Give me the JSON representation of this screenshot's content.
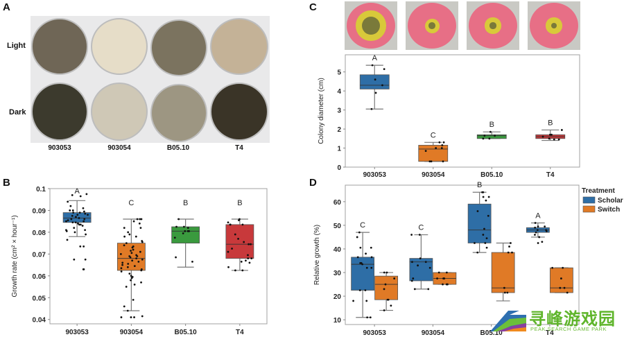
{
  "panels": {
    "A": {
      "letter": "A",
      "row_labels": [
        "Light",
        "Dark"
      ],
      "strains": [
        "903053",
        "903054",
        "B05.10",
        "T4"
      ],
      "plates_light_colors": [
        "#6f6656",
        "#e6ddc8",
        "#7b735f",
        "#c4b297"
      ],
      "plates_dark_colors": [
        "#3c3a2d",
        "#cfc8b6",
        "#9d9682",
        "#3a3427"
      ]
    },
    "B": {
      "letter": "B"
    },
    "C": {
      "letter": "C",
      "plates": [
        {
          "halo": 0.62,
          "core": 0.38
        },
        {
          "halo": 0.3,
          "core": 0.14
        },
        {
          "halo": 0.33,
          "core": 0.13
        },
        {
          "halo": 0.33,
          "core": 0.12
        }
      ]
    },
    "D": {
      "letter": "D"
    }
  },
  "colors": {
    "blue": "#2e6ea6",
    "orange": "#e07a26",
    "green": "#3a9a3e",
    "red": "#c8393b"
  },
  "watermark": {
    "cn": "寻峰游戏园",
    "en": "PEAK SEARCH GAME PARK"
  },
  "chart_data": [
    {
      "id": "B",
      "type": "box",
      "title": "",
      "xlabel": "",
      "ylabel": "Growth rate (cm² × hour⁻¹)",
      "categories": [
        "903053",
        "903054",
        "B05.10",
        "T4"
      ],
      "ylim": [
        0.038,
        0.1
      ],
      "yticks": [
        0.04,
        0.05,
        0.06,
        0.07,
        0.08,
        0.09,
        0.1
      ],
      "ytick_labels": [
        "0.04",
        "0.05",
        "0.06",
        "0.07",
        "0.08",
        "0.09",
        "0.1"
      ],
      "boxes": [
        {
          "q1": 0.0845,
          "median": 0.0865,
          "q3": 0.089,
          "low": 0.078,
          "high": 0.0945,
          "color": "blue",
          "letter": "A",
          "points": [
            0.0965,
            0.0975,
            0.097,
            0.094,
            0.092,
            0.091,
            0.09,
            0.09,
            0.0895,
            0.089,
            0.089,
            0.0885,
            0.088,
            0.088,
            0.0875,
            0.087,
            0.087,
            0.0865,
            0.086,
            0.086,
            0.0855,
            0.085,
            0.085,
            0.0845,
            0.0845,
            0.084,
            0.0835,
            0.0835,
            0.083,
            0.082,
            0.081,
            0.081,
            0.0805,
            0.08,
            0.079,
            0.0765,
            0.0735,
            0.0735,
            0.0675,
            0.0675,
            0.063,
            0.063
          ]
        },
        {
          "q1": 0.0625,
          "median": 0.068,
          "q3": 0.075,
          "low": 0.044,
          "high": 0.086,
          "color": "orange",
          "letter": "C",
          "points": [
            0.086,
            0.086,
            0.086,
            0.085,
            0.084,
            0.082,
            0.082,
            0.08,
            0.079,
            0.078,
            0.078,
            0.076,
            0.0755,
            0.075,
            0.074,
            0.0735,
            0.073,
            0.072,
            0.0715,
            0.071,
            0.0705,
            0.07,
            0.0695,
            0.069,
            0.069,
            0.0685,
            0.068,
            0.0675,
            0.067,
            0.0665,
            0.066,
            0.0655,
            0.065,
            0.0645,
            0.064,
            0.0635,
            0.063,
            0.0625,
            0.062,
            0.061,
            0.06,
            0.0595,
            0.059,
            0.058,
            0.057,
            0.056,
            0.055,
            0.049,
            0.046,
            0.044,
            0.0415,
            0.041,
            0.041,
            0.041
          ]
        },
        {
          "q1": 0.075,
          "median": 0.0805,
          "q3": 0.0825,
          "low": 0.064,
          "high": 0.086,
          "color": "green",
          "letter": "B",
          "points": [
            0.086,
            0.082,
            0.0825,
            0.0825,
            0.0805,
            0.0805,
            0.0805,
            0.0795,
            0.0775,
            0.0685,
            0.0665
          ]
        },
        {
          "q1": 0.068,
          "median": 0.0745,
          "q3": 0.0835,
          "low": 0.0625,
          "high": 0.086,
          "color": "red",
          "letter": "B",
          "points": [
            0.086,
            0.0855,
            0.0845,
            0.0835,
            0.0835,
            0.0835,
            0.079,
            0.077,
            0.0755,
            0.0745,
            0.0745,
            0.0725,
            0.071,
            0.0695,
            0.068,
            0.068,
            0.067,
            0.0665,
            0.066,
            0.064,
            0.0625,
            0.0625
          ]
        }
      ]
    },
    {
      "id": "C",
      "type": "box",
      "title": "",
      "xlabel": "",
      "ylabel": "Colony diameter (cm)",
      "categories": [
        "903053",
        "903054",
        "B05.10",
        "T4"
      ],
      "ylim": [
        0,
        5.9
      ],
      "yticks": [
        0,
        1,
        2,
        3,
        4,
        5
      ],
      "ytick_labels": [
        "0",
        "1",
        "2",
        "3",
        "4",
        "5"
      ],
      "boxes": [
        {
          "q1": 4.1,
          "median": 4.3,
          "q3": 4.85,
          "low": 3.05,
          "high": 5.35,
          "color": "blue",
          "letter": "A",
          "points": [
            5.35,
            5.15,
            4.6,
            4.3,
            3.9,
            3.05
          ]
        },
        {
          "q1": 0.3,
          "median": 0.95,
          "q3": 1.15,
          "low": 0.3,
          "high": 1.3,
          "color": "orange",
          "letter": "C",
          "points": [
            1.3,
            1.3,
            1.15,
            1.0,
            1.0,
            0.85,
            0.3,
            0.3,
            0.3
          ]
        },
        {
          "q1": 1.5,
          "median": 1.65,
          "q3": 1.7,
          "low": 1.5,
          "high": 1.85,
          "color": "green",
          "letter": "B",
          "points": [
            1.85,
            1.65,
            1.65,
            1.5,
            1.5
          ]
        },
        {
          "q1": 1.5,
          "median": 1.6,
          "q3": 1.7,
          "low": 1.4,
          "high": 1.95,
          "color": "red",
          "letter": "B",
          "points": [
            1.95,
            1.7,
            1.7,
            1.6,
            1.5,
            1.45,
            1.45
          ]
        }
      ]
    },
    {
      "id": "D",
      "type": "box",
      "title": "",
      "xlabel": "",
      "ylabel": "Relative growth (%)",
      "categories": [
        "903053",
        "903054",
        "B05.10",
        "T4"
      ],
      "ylim": [
        8,
        67
      ],
      "yticks": [
        10,
        20,
        30,
        40,
        50,
        60
      ],
      "ytick_labels": [
        "10",
        "20",
        "30",
        "40",
        "50",
        "60"
      ],
      "legend": {
        "title": "Treatment",
        "position": "right",
        "entries": [
          {
            "name": "Scholar",
            "color": "blue"
          },
          {
            "name": "Switch",
            "color": "orange"
          }
        ]
      },
      "series": [
        {
          "name": "Scholar",
          "color": "blue",
          "boxes": [
            {
              "q1": 22.5,
              "median": 33.5,
              "q3": 36.5,
              "low": 11,
              "high": 47,
              "letter": "C",
              "points": [
                47,
                45,
                40.5,
                40.5,
                38,
                36.5,
                36.5,
                34,
                34,
                33.5,
                32,
                32,
                22.5,
                22.5,
                18,
                18,
                11,
                11
              ]
            },
            {
              "q1": 26.5,
              "median": 34.5,
              "q3": 36,
              "low": 23,
              "high": 46,
              "letter": "C",
              "points": [
                46,
                46,
                36,
                34.5,
                34.5,
                33,
                32,
                27.5,
                26.5,
                23,
                23
              ]
            },
            {
              "q1": 42.5,
              "median": 48,
              "q3": 59,
              "low": 38.5,
              "high": 64,
              "letter": "B",
              "points": [
                64,
                64,
                62,
                62,
                60.5,
                56,
                54,
                48.5,
                46,
                44.5,
                42.5,
                42.5,
                40.5,
                38.5
              ]
            },
            {
              "q1": 47,
              "median": 48,
              "q3": 49,
              "low": 45,
              "high": 51,
              "letter": "A",
              "points": [
                51,
                49.5,
                49.5,
                49,
                48,
                48,
                47.5,
                47,
                46,
                45,
                43,
                42.5
              ]
            }
          ]
        },
        {
          "name": "Switch",
          "color": "orange",
          "boxes": [
            {
              "q1": 18.5,
              "median": 25,
              "q3": 28.5,
              "low": 14,
              "high": 30,
              "points": [
                30,
                30,
                27.5,
                25,
                23,
                18.5,
                18.5,
                16,
                14
              ]
            },
            {
              "q1": 25,
              "median": 27.5,
              "q3": 30,
              "low": 25,
              "high": 30,
              "points": [
                30,
                30,
                27.5,
                27.5,
                27.5,
                25,
                25,
                25
              ]
            },
            {
              "q1": 21.5,
              "median": 23.5,
              "q3": 38.5,
              "low": 18,
              "high": 42.5,
              "points": [
                42.5,
                41,
                38.5,
                38.5,
                23.5,
                21.5,
                21.5
              ]
            },
            {
              "q1": 21.5,
              "median": 23.5,
              "q3": 32,
              "low": 21.5,
              "high": 32,
              "points": [
                32,
                32,
                27.5,
                23.5,
                23.5,
                21.5
              ]
            }
          ]
        }
      ]
    }
  ]
}
